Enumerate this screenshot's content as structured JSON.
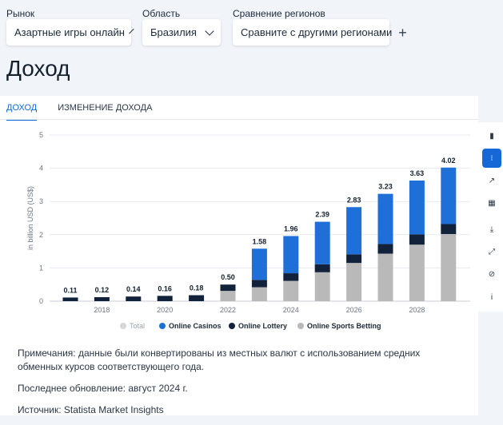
{
  "filters": {
    "market": {
      "label": "Рынок",
      "value": "Азартные игры онлайн"
    },
    "region": {
      "label": "Область",
      "value": "Бразилия"
    },
    "compare": {
      "label": "Сравнение регионов",
      "value": "Сравните с другими регионами"
    }
  },
  "page_title": "Доход",
  "tabs": [
    {
      "label": "ДОХОД",
      "active": true
    },
    {
      "label": "ИЗМЕНЕНИЕ ДОХОДА",
      "active": false
    }
  ],
  "toolbar": [
    {
      "icon": "bar-chart-icon",
      "glyph": "▮"
    },
    {
      "icon": "stacked-bar-icon",
      "glyph": "⁝",
      "active": true
    },
    {
      "icon": "trend-line-icon",
      "glyph": "↗"
    },
    {
      "icon": "table-icon",
      "glyph": "▦"
    },
    {
      "icon": "download-icon",
      "glyph": "⤓"
    },
    {
      "icon": "expand-icon",
      "glyph": "⤢"
    },
    {
      "icon": "hide-icon",
      "glyph": "⊘"
    },
    {
      "icon": "info-icon",
      "glyph": "i"
    }
  ],
  "chart_data": {
    "type": "bar",
    "stacked": true,
    "ylabel": "in billion USD (US$)",
    "ylim": [
      0,
      5
    ],
    "yticks": [
      0,
      1,
      2,
      3,
      4,
      5
    ],
    "categories": [
      "2017",
      "2018",
      "2019",
      "2020",
      "2021",
      "2022",
      "2023",
      "2024",
      "2025",
      "2026",
      "2027",
      "2028",
      "2029"
    ],
    "xtick_labels": [
      "2018",
      "2020",
      "2022",
      "2024",
      "2026",
      "2028"
    ],
    "totals": [
      0.11,
      0.12,
      0.14,
      0.16,
      0.18,
      0.5,
      1.58,
      1.96,
      2.39,
      2.83,
      3.23,
      3.63,
      4.02
    ],
    "series": [
      {
        "name": "Online Sports Betting",
        "color": "#b9b9b9",
        "values": [
          0,
          0,
          0,
          0,
          0,
          0.31,
          0.42,
          0.61,
          0.87,
          1.15,
          1.43,
          1.7,
          2.02
        ]
      },
      {
        "name": "Online Lottery",
        "color": "#12223b",
        "values": [
          0.11,
          0.12,
          0.14,
          0.16,
          0.18,
          0.19,
          0.22,
          0.23,
          0.24,
          0.26,
          0.29,
          0.31,
          0.3
        ]
      },
      {
        "name": "Online Casinos",
        "color": "#1f6fd9",
        "values": [
          0,
          0,
          0,
          0,
          0,
          0,
          0.94,
          1.12,
          1.28,
          1.42,
          1.51,
          1.62,
          1.7
        ]
      }
    ],
    "legend": [
      {
        "name": "Total",
        "color": "#d6d6d6",
        "muted": true
      },
      {
        "name": "Online Casinos",
        "color": "#1f6fd9"
      },
      {
        "name": "Online Lottery",
        "color": "#12223b"
      },
      {
        "name": "Online Sports Betting",
        "color": "#b9b9b9"
      }
    ],
    "grid": true,
    "legend_position": "bottom"
  },
  "notes": {
    "note": "Примечания: данные были конвертированы из местных валют с использованием средних обменных курсов соответствующего года.",
    "updated": "Последнее обновление: август 2024 г.",
    "source": "Источник: Statista Market Insights"
  }
}
